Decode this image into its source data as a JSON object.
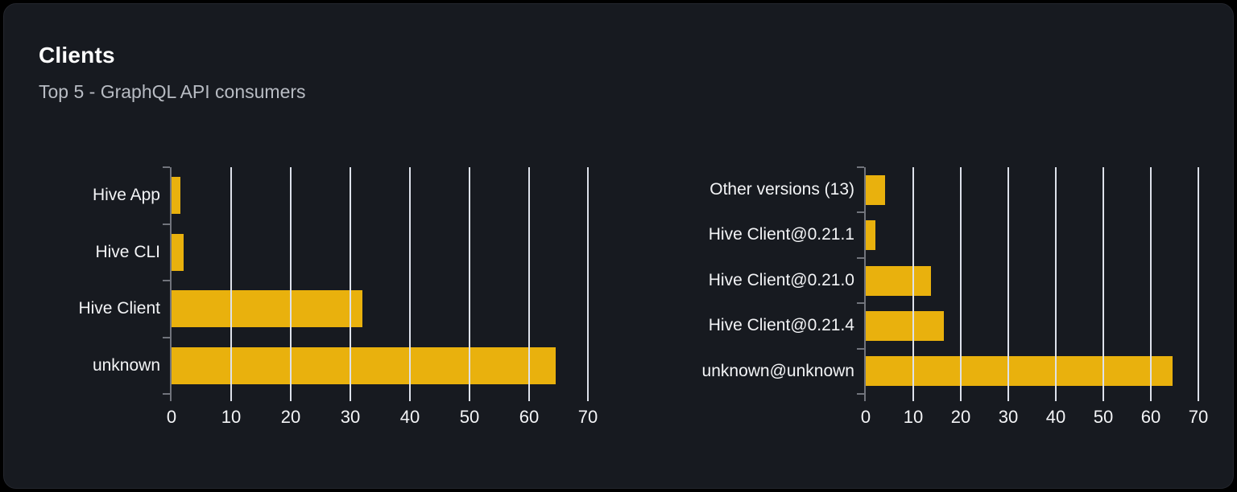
{
  "card": {
    "title": "Clients",
    "subtitle": "Top 5 - GraphQL API consumers"
  },
  "colors": {
    "bar": "#e9b10d",
    "card_background": "#171a20",
    "page_background": "#000000",
    "gridline": "#dde1ea",
    "axis": "#71747c",
    "label_text": "#f3f4f6",
    "subtitle_text": "#b8bcc3",
    "title_text": "#ffffff"
  },
  "chart_data": [
    {
      "type": "bar",
      "orientation": "horizontal",
      "name": "clients-by-name",
      "title": "",
      "categories": [
        "Hive App",
        "Hive CLI",
        "Hive Client",
        "unknown"
      ],
      "values": [
        1.5,
        2,
        32,
        64.5
      ],
      "x_ticks": [
        0,
        10,
        20,
        30,
        40,
        50,
        60,
        70
      ],
      "x_tick_labels": [
        "0",
        "10",
        "20",
        "30",
        "40",
        "50",
        "60",
        "70"
      ],
      "xlim": [
        0,
        74
      ],
      "xlabel": "",
      "ylabel": "",
      "grid": true,
      "gridlines_over_bars": true,
      "legend": "none",
      "bar_color": "#e9b10d"
    },
    {
      "type": "bar",
      "orientation": "horizontal",
      "name": "clients-by-version",
      "title": "",
      "categories": [
        "Other versions (13)",
        "Hive Client@0.21.1",
        "Hive Client@0.21.0",
        "Hive Client@0.21.4",
        "unknown@unknown"
      ],
      "values": [
        4,
        2,
        13.8,
        16.5,
        64.5
      ],
      "x_ticks": [
        0,
        10,
        20,
        30,
        40,
        50,
        60,
        70
      ],
      "x_tick_labels": [
        "0",
        "10",
        "20",
        "30",
        "40",
        "50",
        "60",
        "70"
      ],
      "xlim": [
        0,
        74
      ],
      "xlabel": "",
      "ylabel": "",
      "grid": true,
      "gridlines_over_bars": true,
      "legend": "none",
      "bar_color": "#e9b10d"
    }
  ]
}
